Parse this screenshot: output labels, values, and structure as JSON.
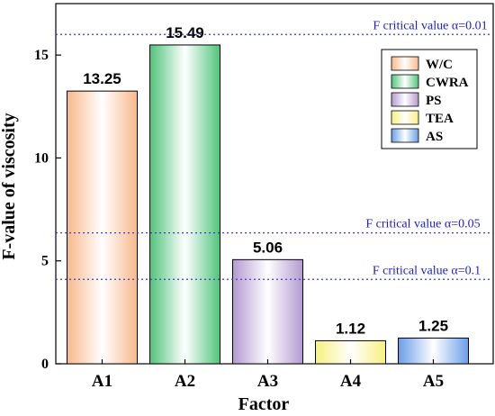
{
  "chart_data": {
    "type": "bar",
    "categories": [
      "A1",
      "A2",
      "A3",
      "A4",
      "A5"
    ],
    "values": [
      13.25,
      15.49,
      5.06,
      1.12,
      1.25
    ],
    "value_labels": [
      "13.25",
      "15.49",
      "5.06",
      "1.12",
      "1.25"
    ],
    "xlabel": "Factor",
    "ylabel": "F-value of viscosity",
    "ylim": [
      0,
      17.5
    ],
    "yticks": [
      0,
      5,
      10,
      15
    ],
    "ytick_labels": [
      "0",
      "5",
      "10",
      "15"
    ],
    "grid": false,
    "legend_position": "top-right",
    "legend": [
      "W/C",
      "CWRA",
      "PS",
      "TEA",
      "AS"
    ],
    "colors": [
      "#f7b98a",
      "#4fc47a",
      "#b39ad0",
      "#f7f080",
      "#6a9ee8"
    ],
    "critical_lines": [
      {
        "label": "F critical value α=0.01",
        "value": 16.0,
        "color": "#3b3bd6"
      },
      {
        "label": "F critical value α=0.05",
        "value": 6.36,
        "color": "#3b3bd6"
      },
      {
        "label": "F critical value α=0.1",
        "value": 4.1,
        "color": "#3b3bd6"
      }
    ]
  }
}
